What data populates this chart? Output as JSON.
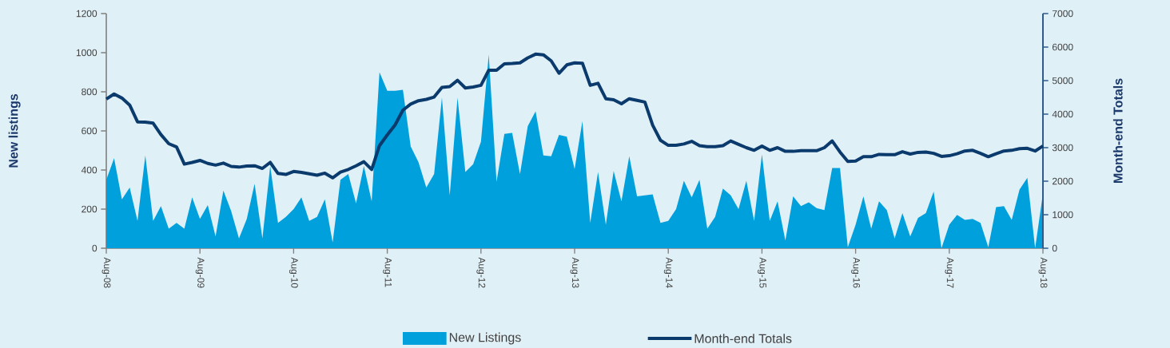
{
  "chart_data": {
    "type": "area",
    "ylabel": "New listings",
    "y2label": "Month-end Totals",
    "categories": [
      "Aug-08",
      null,
      null,
      null,
      null,
      null,
      null,
      null,
      null,
      null,
      null,
      null,
      "Aug-09",
      null,
      null,
      null,
      null,
      null,
      null,
      null,
      null,
      null,
      null,
      null,
      "Aug-10",
      null,
      null,
      null,
      null,
      null,
      null,
      null,
      null,
      null,
      null,
      null,
      "Aug-11",
      null,
      null,
      null,
      null,
      null,
      null,
      null,
      null,
      null,
      null,
      null,
      "Aug-12",
      null,
      null,
      null,
      null,
      null,
      null,
      null,
      null,
      null,
      null,
      null,
      "Aug-13",
      null,
      null,
      null,
      null,
      null,
      null,
      null,
      null,
      null,
      null,
      null,
      "Aug-14",
      null,
      null,
      null,
      null,
      null,
      null,
      null,
      null,
      null,
      null,
      null,
      "Aug-15",
      null,
      null,
      null,
      null,
      null,
      null,
      null,
      null,
      null,
      null,
      null,
      "Aug-16",
      null,
      null,
      null,
      null,
      null,
      null,
      null,
      null,
      null,
      null,
      null,
      "Aug-17",
      null,
      null,
      null,
      null,
      null,
      null,
      null,
      null,
      null,
      null,
      null,
      "Aug-18"
    ],
    "series": [
      {
        "name": "New Listings",
        "color": "#00a0dc",
        "values": [
          350,
          460,
          250,
          310,
          140,
          475,
          140,
          215,
          100,
          130,
          100,
          260,
          150,
          220,
          60,
          295,
          190,
          50,
          150,
          330,
          50,
          420,
          130,
          160,
          200,
          260,
          140,
          160,
          250,
          30,
          350,
          380,
          230,
          420,
          240,
          900,
          805,
          805,
          810,
          520,
          440,
          310,
          380,
          770,
          270,
          770,
          390,
          430,
          545,
          990,
          340,
          585,
          590,
          380,
          625,
          700,
          475,
          470,
          580,
          570,
          405,
          650,
          130,
          390,
          120,
          395,
          240,
          470,
          265,
          270,
          275,
          130,
          140,
          200,
          345,
          260,
          350,
          100,
          160,
          305,
          270,
          200,
          345,
          140,
          480,
          140,
          240,
          40,
          265,
          215,
          235,
          205,
          195,
          410,
          410,
          5,
          120,
          265,
          100,
          240,
          195,
          50,
          180,
          60,
          155,
          180,
          290,
          0,
          120,
          170,
          145,
          150,
          130,
          5,
          210,
          215,
          145,
          300,
          360,
          0,
          280
        ]
      },
      {
        "name": "Month-end Totals",
        "type": "line",
        "axis": "y2",
        "color": "#0b3a6d",
        "values": [
          4450,
          4600,
          4480,
          4270,
          3770,
          3760,
          3730,
          3390,
          3120,
          3020,
          2510,
          2560,
          2620,
          2530,
          2480,
          2540,
          2440,
          2420,
          2450,
          2460,
          2380,
          2560,
          2230,
          2200,
          2290,
          2260,
          2220,
          2180,
          2240,
          2100,
          2270,
          2350,
          2460,
          2580,
          2350,
          3060,
          3380,
          3680,
          4120,
          4300,
          4400,
          4440,
          4510,
          4800,
          4820,
          5010,
          4780,
          4810,
          4860,
          5310,
          5310,
          5500,
          5510,
          5530,
          5680,
          5790,
          5770,
          5590,
          5220,
          5470,
          5530,
          5520,
          4860,
          4920,
          4460,
          4430,
          4310,
          4460,
          4410,
          4360,
          3670,
          3220,
          3070,
          3070,
          3110,
          3190,
          3060,
          3030,
          3030,
          3060,
          3200,
          3100,
          3000,
          2920,
          3050,
          2920,
          3000,
          2890,
          2890,
          2910,
          2910,
          2910,
          3000,
          3200,
          2870,
          2590,
          2600,
          2730,
          2730,
          2800,
          2790,
          2790,
          2880,
          2810,
          2860,
          2870,
          2830,
          2740,
          2760,
          2820,
          2900,
          2920,
          2830,
          2730,
          2820,
          2900,
          2920,
          2970,
          2980,
          2900,
          3050
        ]
      }
    ],
    "ylim": [
      0,
      1200
    ],
    "yticks": [
      0,
      200,
      400,
      600,
      800,
      1000,
      1200
    ],
    "y2lim": [
      0,
      7000
    ],
    "y2ticks": [
      0,
      1000,
      2000,
      3000,
      4000,
      5000,
      6000,
      7000
    ],
    "legend": "bottom",
    "grid": false
  }
}
